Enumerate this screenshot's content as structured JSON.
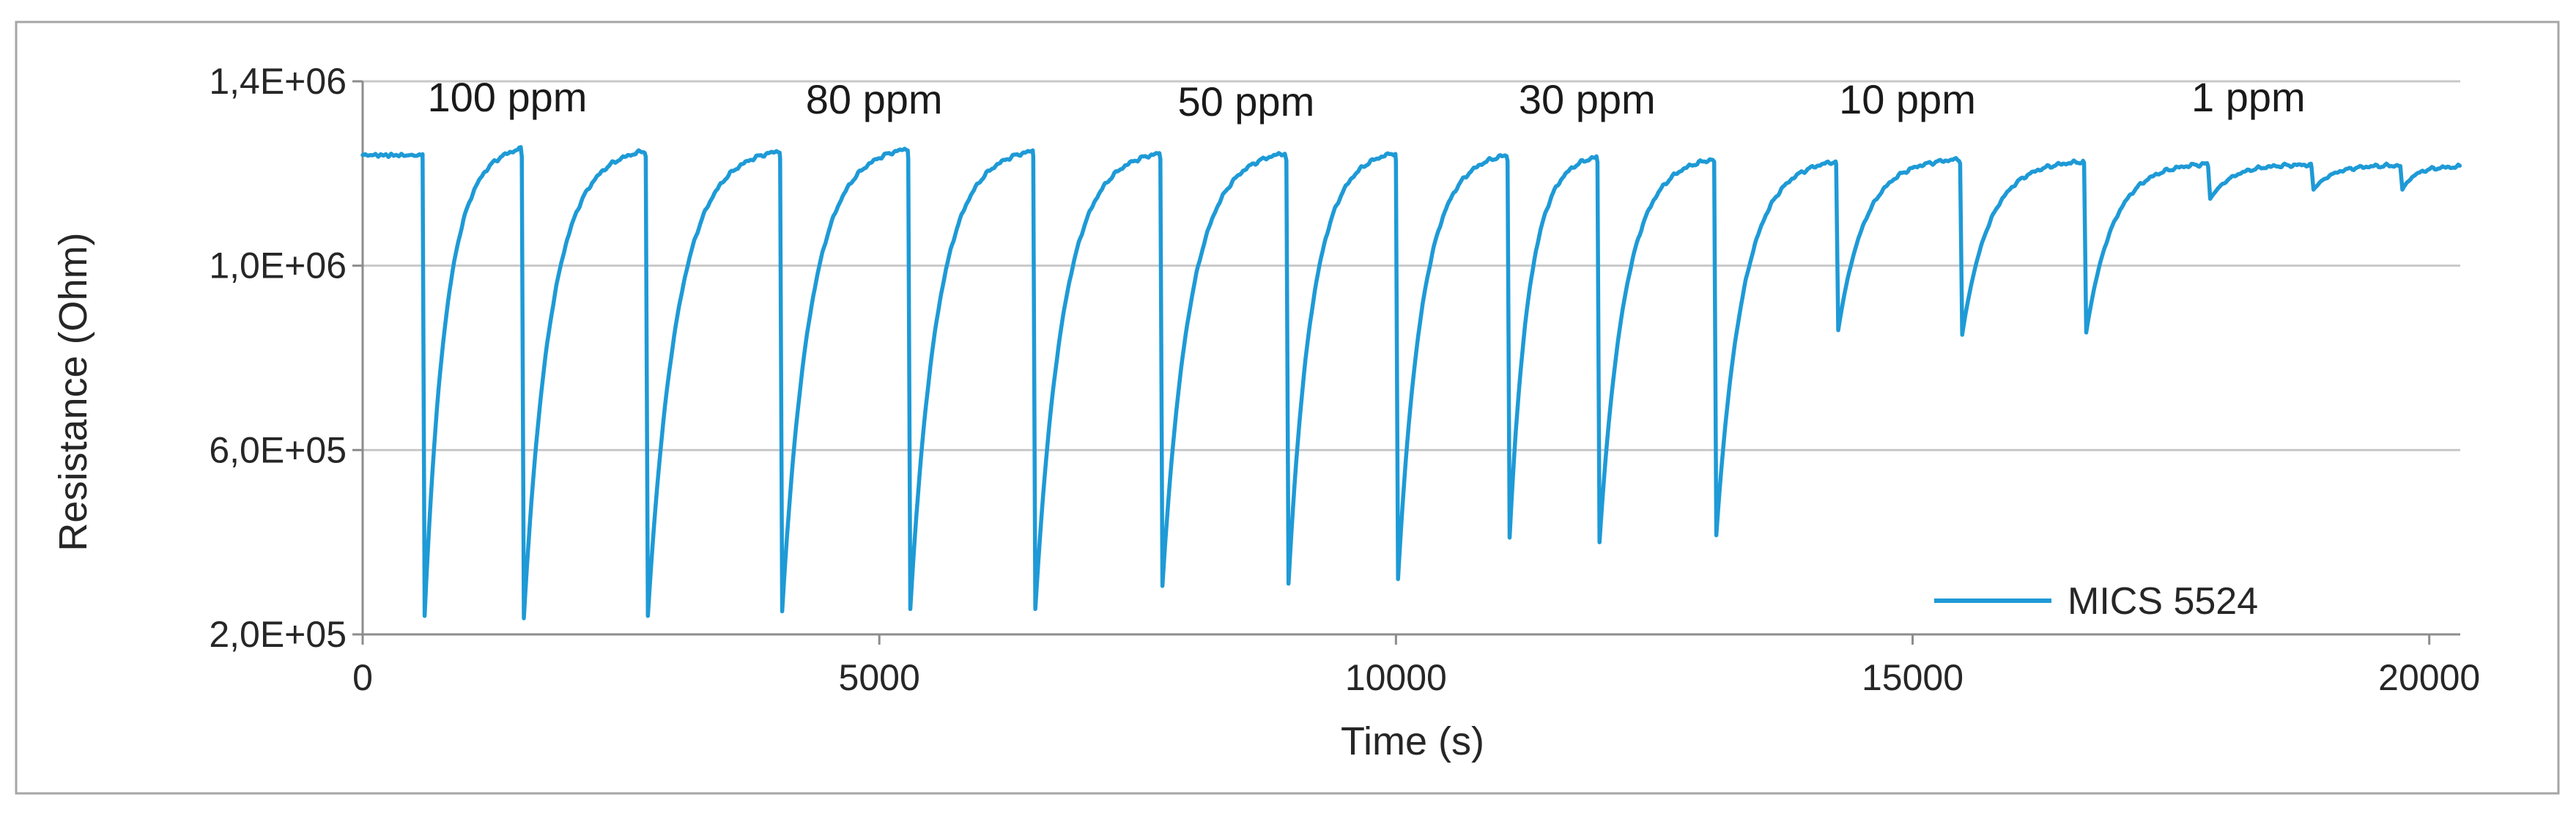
{
  "chart_data": {
    "type": "line",
    "xlabel": "Time (s)",
    "ylabel": "Resistance (Ohm)",
    "xlim": [
      0,
      20300
    ],
    "ylim": [
      200000,
      1400000
    ],
    "x_ticks": [
      {
        "value": 0,
        "label": "0"
      },
      {
        "value": 5000,
        "label": "5000"
      },
      {
        "value": 10000,
        "label": "10000"
      },
      {
        "value": 15000,
        "label": "15000"
      },
      {
        "value": 20000,
        "label": "20000"
      }
    ],
    "y_ticks": [
      {
        "value": 200000,
        "label": "2,0E+05"
      },
      {
        "value": 600000,
        "label": "6,0E+05"
      },
      {
        "value": 1000000,
        "label": "1,0E+06"
      },
      {
        "value": 1400000,
        "label": "1,4E+06"
      }
    ],
    "grid": {
      "horizontal": true,
      "vertical": false
    },
    "legend": {
      "placement": "bottom-right"
    },
    "series": [
      {
        "name": "MICS 5524",
        "color": "#1e9ad6",
        "baseline_start": 1240000,
        "baseline_end": 1215000,
        "pulses": [
          {
            "on": 580,
            "off": 600,
            "min": 240000,
            "recovered": 1265000
          },
          {
            "on": 1540,
            "off": 1560,
            "min": 235000,
            "recovered": 1260000
          },
          {
            "on": 2740,
            "off": 2760,
            "min": 240000,
            "recovered": 1260000
          },
          {
            "on": 4040,
            "off": 4060,
            "min": 250000,
            "recovered": 1265000
          },
          {
            "on": 5280,
            "off": 5300,
            "min": 255000,
            "recovered": 1260000
          },
          {
            "on": 6490,
            "off": 6510,
            "min": 255000,
            "recovered": 1255000
          },
          {
            "on": 7720,
            "off": 7740,
            "min": 305000,
            "recovered": 1255000
          },
          {
            "on": 8940,
            "off": 8960,
            "min": 310000,
            "recovered": 1255000
          },
          {
            "on": 10000,
            "off": 10020,
            "min": 320000,
            "recovered": 1250000
          },
          {
            "on": 11080,
            "off": 11100,
            "min": 410000,
            "recovered": 1245000
          },
          {
            "on": 11950,
            "off": 11970,
            "min": 400000,
            "recovered": 1240000
          },
          {
            "on": 13080,
            "off": 13100,
            "min": 415000,
            "recovered": 1235000
          },
          {
            "on": 14260,
            "off": 14280,
            "min": 860000,
            "recovered": 1235000
          },
          {
            "on": 15460,
            "off": 15480,
            "min": 850000,
            "recovered": 1230000
          },
          {
            "on": 16660,
            "off": 16680,
            "min": 855000,
            "recovered": 1225000
          },
          {
            "on": 17860,
            "off": 17880,
            "min": 1145000,
            "recovered": 1220000
          },
          {
            "on": 18860,
            "off": 18880,
            "min": 1165000,
            "recovered": 1218000
          },
          {
            "on": 19720,
            "off": 19740,
            "min": 1165000,
            "recovered": 1215000
          }
        ]
      }
    ],
    "annotations": [
      {
        "text": "100 ppm",
        "x": 1400,
        "y": 1335000
      },
      {
        "text": "80 ppm",
        "x": 4950,
        "y": 1330000
      },
      {
        "text": "50 ppm",
        "x": 8550,
        "y": 1325000
      },
      {
        "text": "30 ppm",
        "x": 11850,
        "y": 1330000
      },
      {
        "text": "10 ppm",
        "x": 14950,
        "y": 1330000
      },
      {
        "text": "1 ppm",
        "x": 18250,
        "y": 1335000
      }
    ]
  }
}
